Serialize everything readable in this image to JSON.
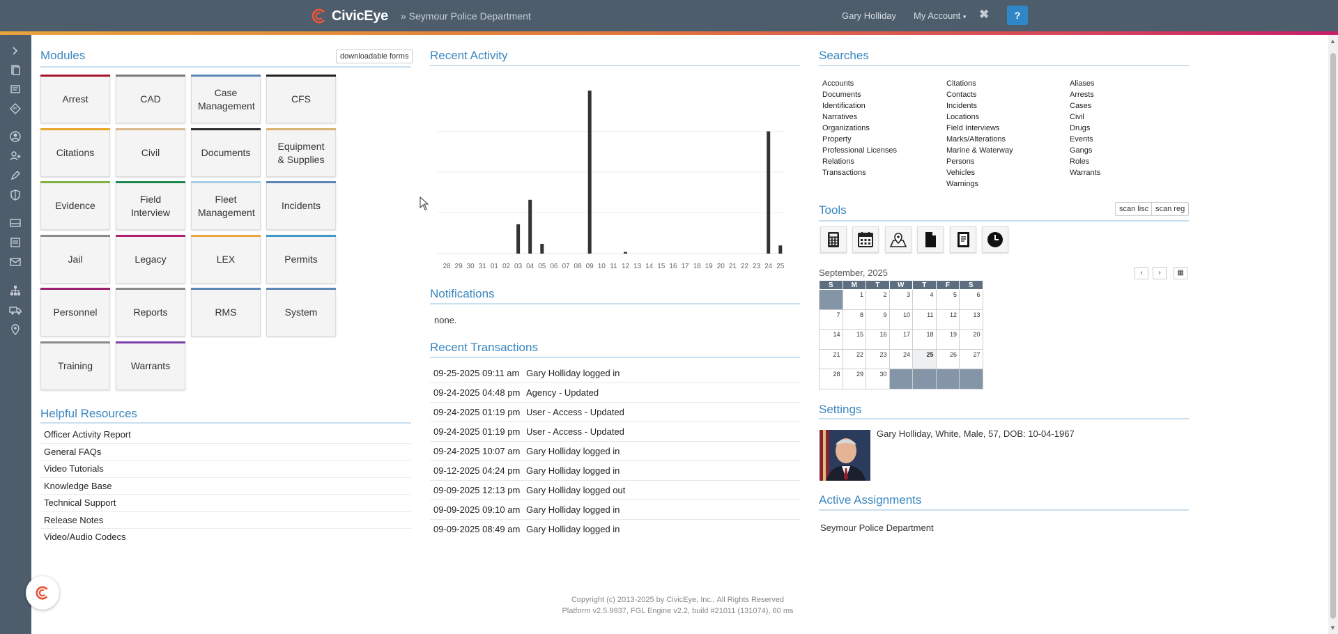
{
  "header": {
    "brand": "CivicEye",
    "department": "» Seymour Police Department",
    "user_name": "Gary Holliday",
    "account_menu": "My Account",
    "help_label": "?"
  },
  "modules": {
    "title": "Modules",
    "downloadable_forms": "downloadable forms",
    "items": [
      {
        "label": "Arrest",
        "color": "#a3162c"
      },
      {
        "label": "CAD",
        "color": "#7a7a7a"
      },
      {
        "label": "Case Management",
        "color": "#5b86b5"
      },
      {
        "label": "CFS",
        "color": "#222222"
      },
      {
        "label": "Citations",
        "color": "#e9a628"
      },
      {
        "label": "Civil",
        "color": "#d9b98a"
      },
      {
        "label": "Documents",
        "color": "#2b2b2b"
      },
      {
        "label": "Equipment & Supplies",
        "color": "#d7b36e"
      },
      {
        "label": "Evidence",
        "color": "#7fb342"
      },
      {
        "label": "Field Interview",
        "color": "#1c8a4f"
      },
      {
        "label": "Fleet Management",
        "color": "#a9cfe8"
      },
      {
        "label": "Incidents",
        "color": "#5b86b5"
      },
      {
        "label": "Jail",
        "color": "#8a8a8a"
      },
      {
        "label": "Legacy",
        "color": "#b02373"
      },
      {
        "label": "LEX",
        "color": "#e8a53a"
      },
      {
        "label": "Permits",
        "color": "#3f98c9"
      },
      {
        "label": "Personnel",
        "color": "#9c1c6e"
      },
      {
        "label": "Reports",
        "color": "#8a8a8a"
      },
      {
        "label": "RMS",
        "color": "#5b86b5"
      },
      {
        "label": "System",
        "color": "#5b86b5"
      },
      {
        "label": "Training",
        "color": "#8a8a8a"
      },
      {
        "label": "Warrants",
        "color": "#7b3fa8"
      }
    ]
  },
  "helpful_resources": {
    "title": "Helpful Resources",
    "items": [
      "Officer Activity Report",
      "General FAQs",
      "Video Tutorials",
      "Knowledge Base",
      "Technical Support",
      "Release Notes",
      "Video/Audio Codecs"
    ]
  },
  "recent_activity": {
    "title": "Recent Activity"
  },
  "chart_data": {
    "type": "bar",
    "categories": [
      "28",
      "29",
      "30",
      "31",
      "01",
      "02",
      "03",
      "04",
      "05",
      "06",
      "07",
      "08",
      "09",
      "10",
      "11",
      "12",
      "13",
      "14",
      "15",
      "16",
      "17",
      "18",
      "19",
      "20",
      "21",
      "22",
      "23",
      "24",
      "25"
    ],
    "values": [
      0,
      0,
      0,
      0,
      0,
      0,
      18,
      33,
      6,
      0,
      0,
      0,
      100,
      0,
      0,
      1,
      0,
      0,
      0,
      0,
      0,
      0,
      0,
      0,
      0,
      0,
      0,
      75,
      5
    ],
    "title": "",
    "xlabel": "",
    "ylabel": "",
    "ylim": [
      0,
      100
    ],
    "grid": true,
    "bar_color": "#333333"
  },
  "notifications": {
    "title": "Notifications",
    "text": "none."
  },
  "recent_transactions": {
    "title": "Recent Transactions",
    "rows": [
      {
        "date": "09-25-2025 09:11 am",
        "text": "Gary Holliday logged in"
      },
      {
        "date": "09-24-2025 04:48 pm",
        "text": "Agency - Updated"
      },
      {
        "date": "09-24-2025 01:19 pm",
        "text": "User - Access - Updated"
      },
      {
        "date": "09-24-2025 01:19 pm",
        "text": "User - Access - Updated"
      },
      {
        "date": "09-24-2025 10:07 am",
        "text": "Gary Holliday logged in"
      },
      {
        "date": "09-12-2025 04:24 pm",
        "text": "Gary Holliday logged in"
      },
      {
        "date": "09-09-2025 12:13 pm",
        "text": "Gary Holliday logged out"
      },
      {
        "date": "09-09-2025 09:10 am",
        "text": "Gary Holliday logged in"
      },
      {
        "date": "09-09-2025 08:49 am",
        "text": "Gary Holliday logged in"
      }
    ]
  },
  "searches": {
    "title": "Searches",
    "columns": [
      [
        "Accounts",
        "Documents",
        "Identification",
        "Narratives",
        "Organizations",
        "Property",
        "Professional Licenses",
        "Relations",
        "Transactions"
      ],
      [
        "Citations",
        "Contacts",
        "Incidents",
        "Locations",
        "Field Interviews",
        "Marks/Alterations",
        "Marine & Waterway",
        "Persons",
        "Vehicles",
        "Warnings"
      ],
      [
        "Aliases",
        "Arrests",
        "Cases",
        "Civil",
        "Drugs",
        "Events",
        "Gangs",
        "Roles",
        "Warrants"
      ]
    ]
  },
  "tools": {
    "title": "Tools",
    "scan_lisc": "scan lisc",
    "scan_reg": "scan reg",
    "icons": [
      "calculator-icon",
      "calendar-icon",
      "map-icon",
      "document-icon",
      "book-icon",
      "clock-icon"
    ]
  },
  "calendar": {
    "title": "September, 2025",
    "prev": "‹",
    "next": "›",
    "grid_btn": "▦",
    "weekdays": [
      "S",
      "M",
      "T",
      "W",
      "T",
      "F",
      "S"
    ],
    "weeks": [
      [
        "",
        "1",
        "2",
        "3",
        "4",
        "5",
        "6"
      ],
      [
        "7",
        "8",
        "9",
        "10",
        "11",
        "12",
        "13"
      ],
      [
        "14",
        "15",
        "16",
        "17",
        "18",
        "19",
        "20"
      ],
      [
        "21",
        "22",
        "23",
        "24",
        "25",
        "26",
        "27"
      ],
      [
        "28",
        "29",
        "30",
        "",
        "",
        "",
        ""
      ]
    ],
    "today": "25"
  },
  "settings": {
    "title": "Settings",
    "profile": "Gary Holliday, White, Male, 57, DOB: 10-04-1967"
  },
  "assignments": {
    "title": "Active Assignments",
    "text": "Seymour Police Department"
  },
  "footer": {
    "copyright": "Copyright (c) 2013-2025 by CivicEye, Inc., All Rights Reserved",
    "platform": "Platform v2.5.9937, FGL Engine v2.2, build #21011 (131074), 60 ms"
  }
}
